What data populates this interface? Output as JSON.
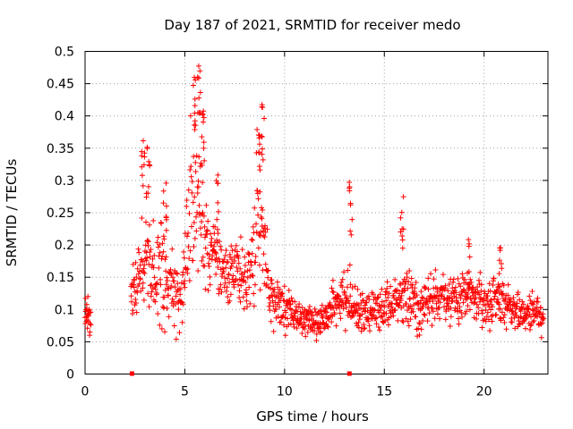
{
  "chart_data": {
    "type": "scatter",
    "title": "Day 187 of 2021, SRMTID for receiver medo",
    "xlabel": "GPS time / hours",
    "ylabel": "SRMTID / TECUs",
    "xlim": [
      0,
      23.2
    ],
    "ylim": [
      0,
      0.5
    ],
    "x_ticks": [
      0,
      5,
      10,
      15,
      20
    ],
    "y_ticks": [
      0,
      0.05,
      0.1,
      0.15,
      0.2,
      0.25,
      0.3,
      0.35,
      0.4,
      0.45,
      0.5
    ],
    "grid": true,
    "marker": "+",
    "color": "#ff0000",
    "gap_markers_x": [
      2.35,
      13.25
    ],
    "envelope": [
      [
        0.0,
        0.09,
        0.03
      ],
      [
        0.3,
        0.09,
        0.03
      ],
      [
        2.3,
        0.12,
        0.04
      ],
      [
        2.6,
        0.13,
        0.06
      ],
      [
        2.8,
        0.16,
        0.09
      ],
      [
        3.0,
        0.2,
        0.12
      ],
      [
        3.3,
        0.16,
        0.08
      ],
      [
        3.6,
        0.15,
        0.07
      ],
      [
        3.9,
        0.16,
        0.09
      ],
      [
        4.2,
        0.14,
        0.07
      ],
      [
        4.5,
        0.12,
        0.06
      ],
      [
        4.8,
        0.1,
        0.05
      ],
      [
        5.0,
        0.17,
        0.1
      ],
      [
        5.3,
        0.26,
        0.15
      ],
      [
        5.6,
        0.3,
        0.16
      ],
      [
        5.9,
        0.24,
        0.1
      ],
      [
        6.2,
        0.2,
        0.07
      ],
      [
        6.5,
        0.18,
        0.06
      ],
      [
        6.8,
        0.16,
        0.05
      ],
      [
        7.1,
        0.15,
        0.05
      ],
      [
        7.4,
        0.17,
        0.06
      ],
      [
        7.7,
        0.16,
        0.06
      ],
      [
        8.0,
        0.12,
        0.06
      ],
      [
        8.3,
        0.16,
        0.08
      ],
      [
        8.6,
        0.24,
        0.12
      ],
      [
        8.9,
        0.25,
        0.13
      ],
      [
        9.2,
        0.13,
        0.05
      ],
      [
        9.5,
        0.11,
        0.04
      ],
      [
        9.8,
        0.11,
        0.04
      ],
      [
        10.1,
        0.1,
        0.04
      ],
      [
        10.5,
        0.09,
        0.03
      ],
      [
        11.0,
        0.085,
        0.03
      ],
      [
        11.5,
        0.08,
        0.03
      ],
      [
        12.0,
        0.09,
        0.03
      ],
      [
        12.5,
        0.1,
        0.04
      ],
      [
        13.0,
        0.12,
        0.06
      ],
      [
        13.25,
        0.11,
        0.06
      ],
      [
        13.6,
        0.1,
        0.04
      ],
      [
        14.0,
        0.1,
        0.04
      ],
      [
        14.5,
        0.1,
        0.04
      ],
      [
        15.0,
        0.1,
        0.04
      ],
      [
        15.5,
        0.11,
        0.04
      ],
      [
        16.0,
        0.13,
        0.06
      ],
      [
        16.3,
        0.12,
        0.05
      ],
      [
        16.7,
        0.1,
        0.05
      ],
      [
        17.0,
        0.11,
        0.04
      ],
      [
        17.5,
        0.12,
        0.04
      ],
      [
        18.0,
        0.12,
        0.04
      ],
      [
        18.5,
        0.12,
        0.04
      ],
      [
        19.0,
        0.12,
        0.04
      ],
      [
        19.5,
        0.12,
        0.04
      ],
      [
        20.0,
        0.11,
        0.04
      ],
      [
        20.5,
        0.11,
        0.04
      ],
      [
        21.0,
        0.1,
        0.04
      ],
      [
        21.5,
        0.1,
        0.04
      ],
      [
        22.0,
        0.09,
        0.03
      ],
      [
        22.5,
        0.1,
        0.04
      ],
      [
        23.0,
        0.09,
        0.03
      ]
    ],
    "peaks": [
      [
        2.9,
        0.38
      ],
      [
        3.15,
        0.355
      ],
      [
        5.45,
        0.465
      ],
      [
        5.7,
        0.48
      ],
      [
        5.9,
        0.41
      ],
      [
        6.6,
        0.31
      ],
      [
        8.7,
        0.4
      ],
      [
        8.9,
        0.42
      ],
      [
        13.3,
        0.3
      ],
      [
        15.9,
        0.275
      ],
      [
        4.0,
        0.3
      ],
      [
        19.2,
        0.215
      ],
      [
        20.8,
        0.215
      ]
    ]
  }
}
